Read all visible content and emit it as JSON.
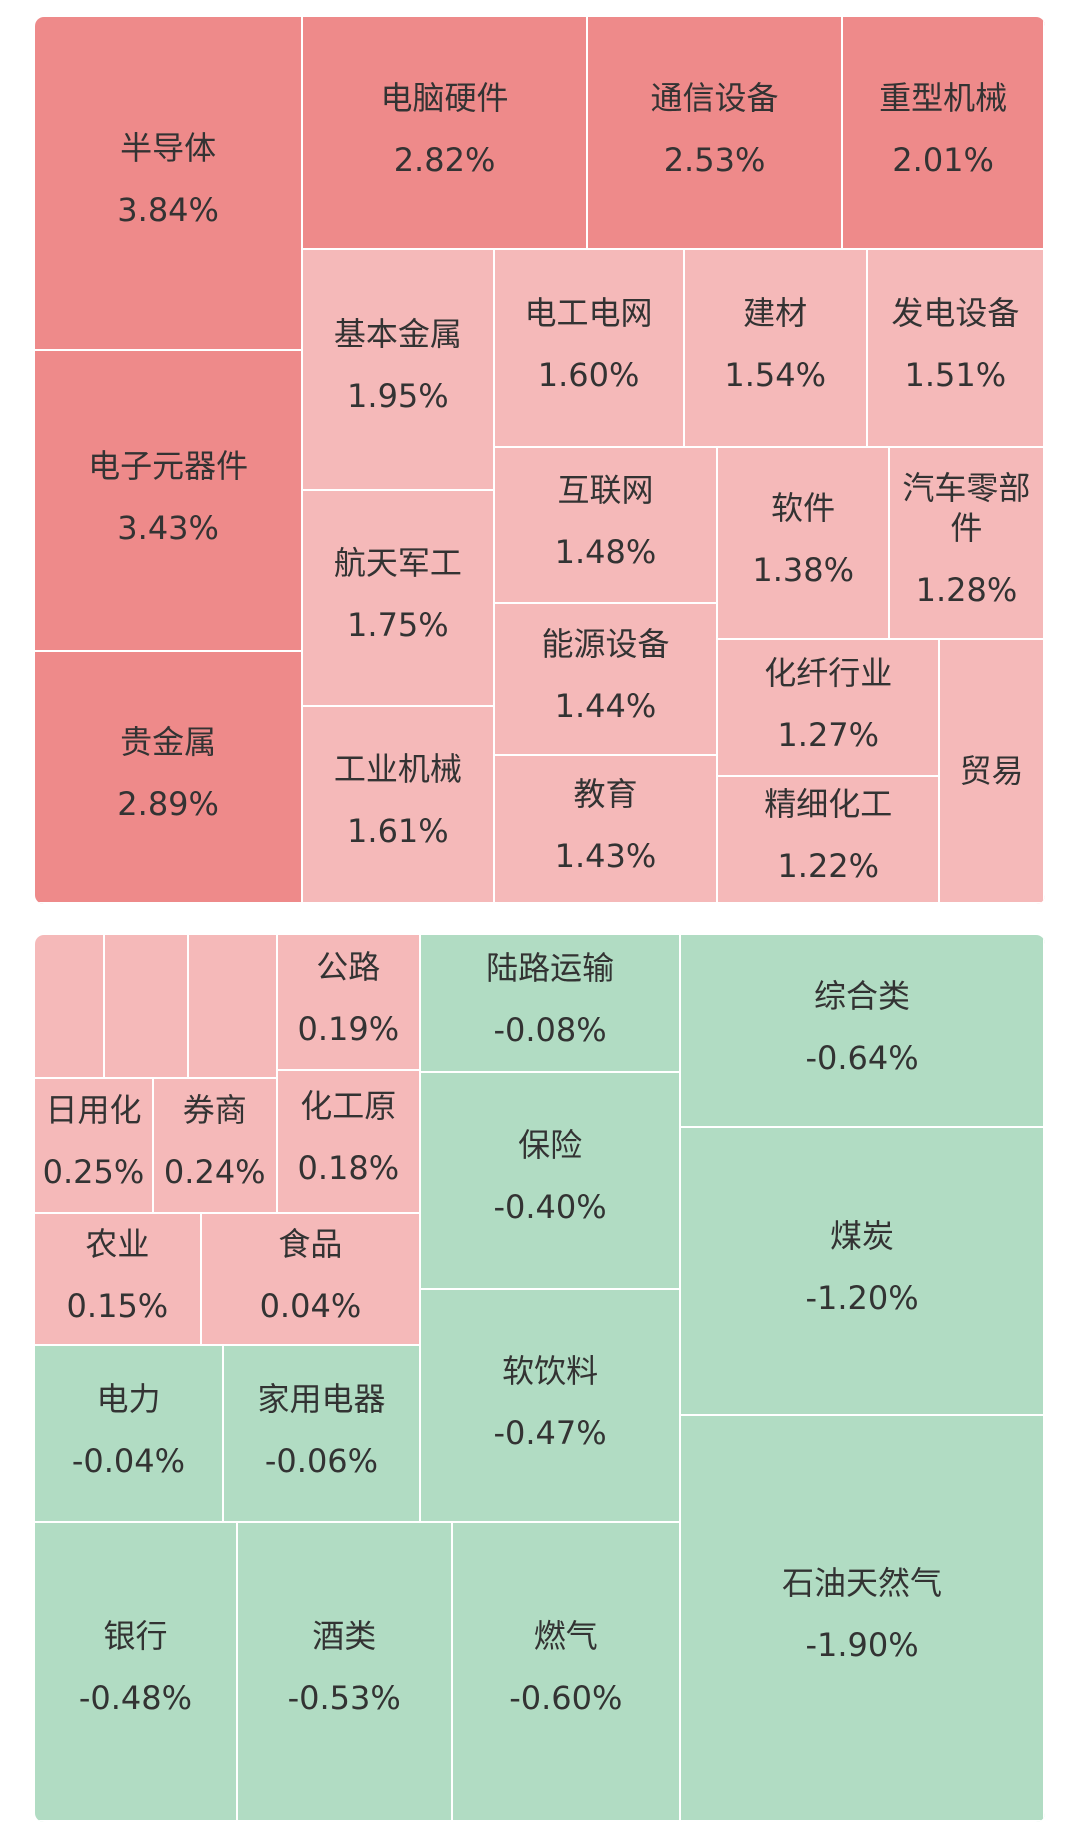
{
  "chart_data": {
    "type": "treemap",
    "categories": [
      "半导体",
      "电子元器件",
      "贵金属",
      "电脑硬件",
      "通信设备",
      "重型机械",
      "基本金属",
      "航天军工",
      "工业机械",
      "电工电网",
      "建材",
      "发电设备",
      "互联网",
      "能源设备",
      "教育",
      "软件",
      "汽车零部件",
      "化纤行业",
      "精细化工",
      "贸易",
      null,
      null,
      null,
      "公路",
      "日用化",
      "券商",
      "化工原",
      "农业",
      "食品",
      "电力",
      "家用电器",
      "银行",
      "酒类",
      "燃气",
      "陆路运输",
      "保险",
      "软饮料",
      "综合类",
      "煤炭",
      "石油天然气"
    ],
    "values": [
      3.84,
      3.43,
      2.89,
      2.82,
      2.53,
      2.01,
      1.95,
      1.75,
      1.61,
      1.6,
      1.54,
      1.51,
      1.48,
      1.44,
      1.43,
      1.38,
      1.28,
      1.27,
      1.22,
      null,
      null,
      null,
      null,
      0.19,
      0.25,
      0.24,
      0.18,
      0.15,
      0.04,
      -0.04,
      -0.06,
      -0.48,
      -0.53,
      -0.6,
      -0.08,
      -0.4,
      -0.47,
      -0.64,
      -1.2,
      -1.9
    ],
    "value_labels": [
      "3.84%",
      "3.43%",
      "2.89%",
      "2.82%",
      "2.53%",
      "2.01%",
      "1.95%",
      "1.75%",
      "1.61%",
      "1.60%",
      "1.54%",
      "1.51%",
      "1.48%",
      "1.44%",
      "1.43%",
      "1.38%",
      "1.28%",
      "1.27%",
      "1.22%",
      null,
      null,
      null,
      null,
      "0.19%",
      "0.25%",
      "0.24%",
      "0.18%",
      "0.15%",
      "0.04%",
      "-0.04%",
      "-0.06%",
      "-0.48%",
      "-0.53%",
      "-0.60%",
      "-0.08%",
      "-0.40%",
      "-0.47%",
      "-0.64%",
      "-1.20%",
      "-1.90%"
    ],
    "colors": [
      "#ee8a8a",
      "#ee8a8a",
      "#ee8a8a",
      "#ee8a8a",
      "#ee8a8a",
      "#ee8a8a",
      "#f5b9b9",
      "#f5b9b9",
      "#f5b9b9",
      "#f5b9b9",
      "#f5b9b9",
      "#f5b9b9",
      "#f5b9b9",
      "#f5b9b9",
      "#f5b9b9",
      "#f5b9b9",
      "#f5b9b9",
      "#f5b9b9",
      "#f5b9b9",
      "#f5b9b9",
      "#f5b9b9",
      "#f5b9b9",
      "#f5b9b9",
      "#f5b9b9",
      "#f5b9b9",
      "#f5b9b9",
      "#f5b9b9",
      "#f5b9b9",
      "#f5b9b9",
      "#b1dcc3",
      "#b1dcc3",
      "#b1dcc3",
      "#b1dcc3",
      "#b1dcc3",
      "#b1dcc3",
      "#b1dcc3",
      "#b1dcc3",
      "#b1dcc3",
      "#b1dcc3",
      "#b1dcc3"
    ]
  }
}
